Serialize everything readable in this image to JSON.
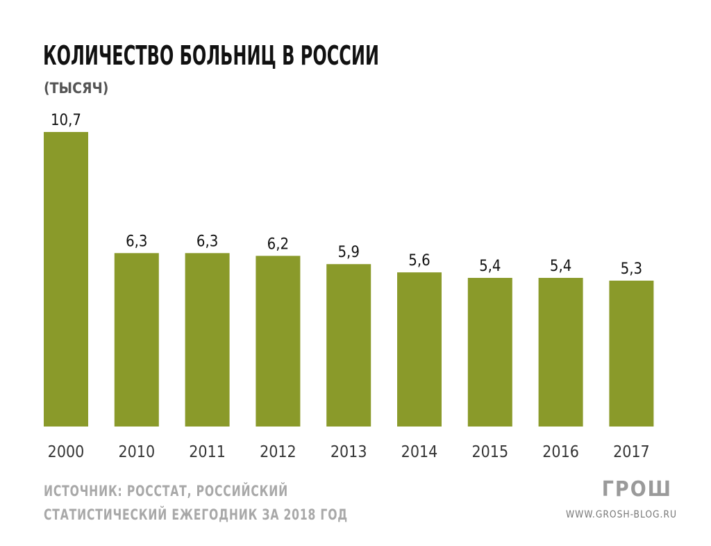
{
  "chart_data": {
    "type": "bar",
    "title": "КОЛИЧЕСТВО БОЛЬНИЦ В РОССИИ",
    "subtitle": "(ТЫСЯЧ)",
    "categories": [
      "2000",
      "2010",
      "2011",
      "2012",
      "2013",
      "2014",
      "2015",
      "2016",
      "2017"
    ],
    "values": [
      10.7,
      6.3,
      6.3,
      6.2,
      5.9,
      5.6,
      5.4,
      5.4,
      5.3
    ],
    "value_labels": [
      "10,7",
      "6,3",
      "6,3",
      "6,2",
      "5,9",
      "5,6",
      "5,4",
      "5,4",
      "5,3"
    ],
    "xlabel": "",
    "ylabel": "",
    "ylim": [
      0,
      10.7
    ],
    "grid": false,
    "bar_color": "#8a9a2a"
  },
  "footer": {
    "source_line1": "ИСТОЧНИК: РОССТАТ, РОССИЙСКИЙ",
    "source_line2": "СТАТИСТИЧЕСКИЙ ЕЖЕГОДНИК ЗА 2018 ГОД",
    "logo": "ГРОШ",
    "url": "WWW.GROSH-BLOG.RU"
  }
}
